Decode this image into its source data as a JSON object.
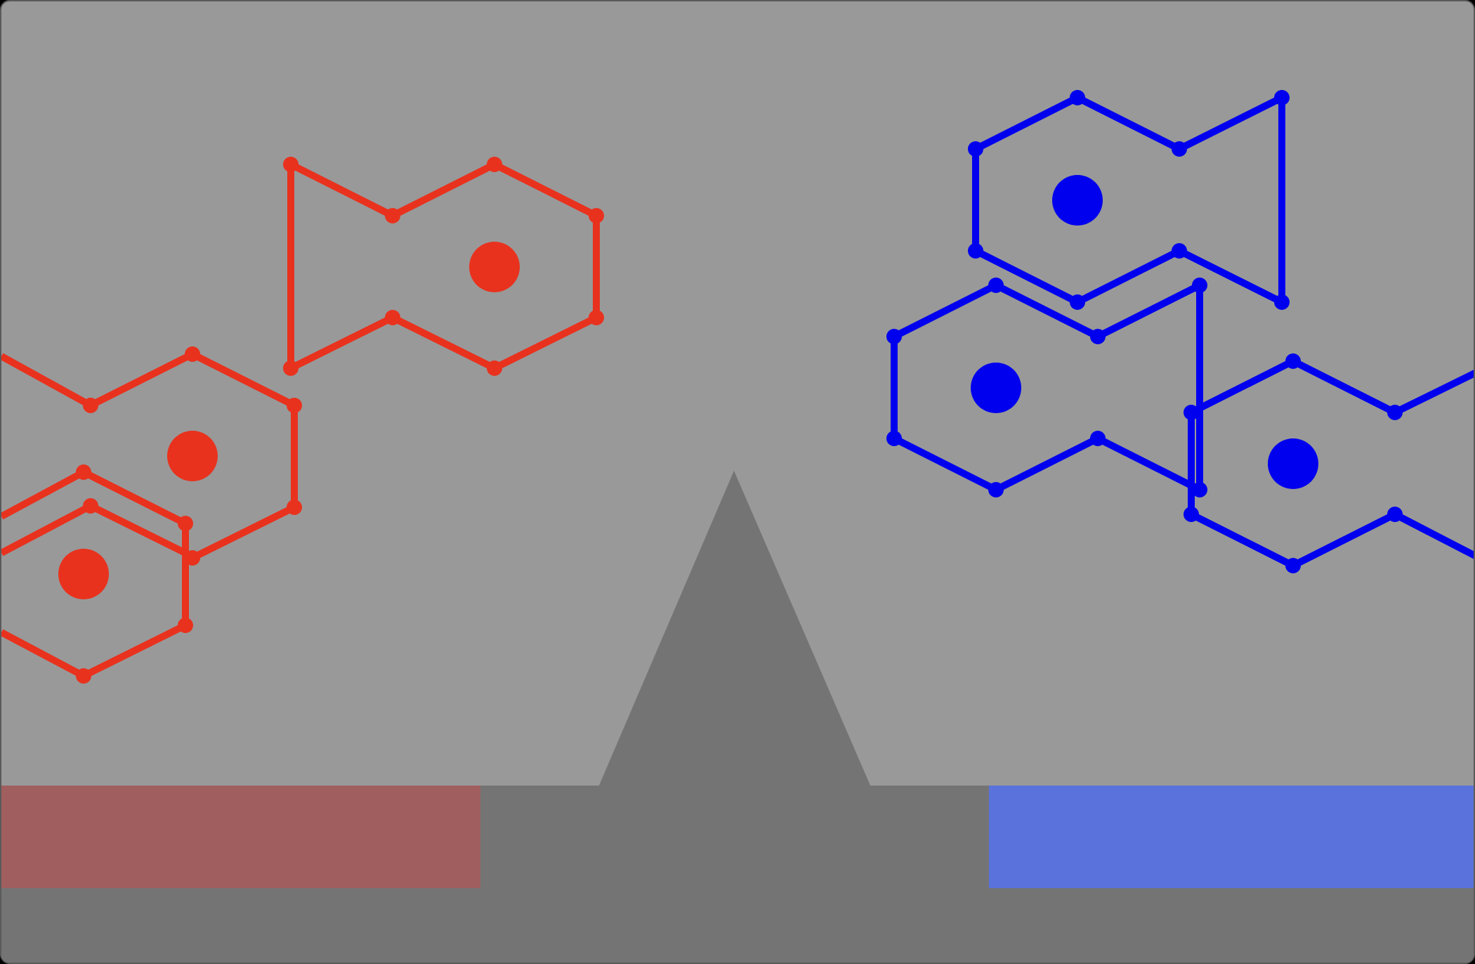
{
  "theme": {
    "sky": "#999999",
    "ground": "#747474",
    "peak": "#747474",
    "red_team": "#e8321e",
    "blue_team": "#0000ee",
    "red_zone": "#a05f5e",
    "blue_zone": "#5a73dc"
  },
  "teams": [
    {
      "id": "red",
      "color_key": "red_team",
      "zone_key": "red_zone",
      "zone_side": "left",
      "units": [
        {
          "shape": "hex",
          "cell": [
            -1,
            0
          ]
        },
        {
          "shape": "hex-with-notch",
          "cell": [
            1,
            -1
          ],
          "core": true
        },
        {
          "shape": "hex",
          "cell": [
            0,
            1
          ],
          "core": true
        },
        {
          "shape": "hex",
          "cell": [
            -1,
            2
          ],
          "core": true
        }
      ]
    },
    {
      "id": "blue",
      "color_key": "blue_team",
      "zone_key": "blue_zone",
      "zone_side": "right",
      "units": [
        {
          "shape": "hex-with-notch",
          "cell": [
            1,
            -1
          ],
          "core": true
        },
        {
          "shape": "hex",
          "cell": [
            0,
            0
          ],
          "core": true
        },
        {
          "shape": "hex",
          "cell": [
            1,
            1
          ],
          "core": true
        }
      ]
    }
  ]
}
